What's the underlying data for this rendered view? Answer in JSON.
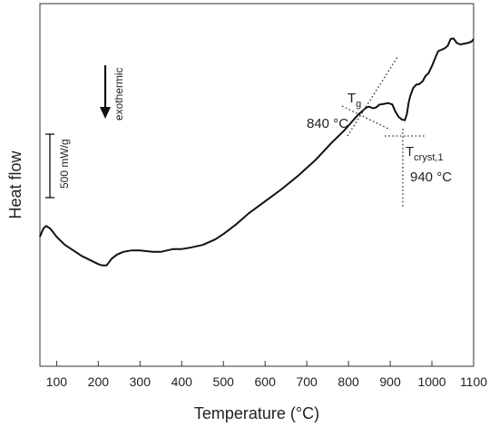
{
  "chart_data": {
    "type": "line",
    "xlabel": "Temperature (°C)",
    "ylabel": "Heat flow",
    "xlim": [
      60,
      1100
    ],
    "ylim": [
      0,
      100
    ],
    "y_ticks_shown": false,
    "grid": false,
    "x_ticks": [
      100,
      200,
      300,
      400,
      500,
      600,
      700,
      800,
      900,
      1000,
      1100
    ],
    "series": [
      {
        "x": [
          60,
          68,
          75,
          85,
          100,
          120,
          140,
          160,
          180,
          200,
          210,
          220,
          232,
          245,
          260,
          280,
          300,
          330,
          350,
          380,
          400,
          420,
          450,
          480,
          500,
          530,
          560,
          600,
          640,
          680,
          720,
          760,
          790,
          810,
          825,
          835,
          842,
          850,
          858,
          865,
          875,
          885,
          895,
          905,
          912,
          920,
          928,
          935,
          940,
          944,
          948,
          955,
          962,
          970,
          978,
          985,
          992,
          1000,
          1008,
          1015,
          1022,
          1030,
          1038,
          1045,
          1052,
          1060,
          1068,
          1075,
          1085,
          1095,
          1100
        ],
        "y": [
          30.5,
          33.5,
          34.5,
          33.5,
          30.5,
          27.5,
          25.5,
          23.5,
          22.0,
          20.5,
          20.0,
          20.0,
          22.5,
          24.0,
          25.0,
          25.5,
          25.5,
          25.0,
          25.0,
          26.0,
          26.0,
          26.5,
          27.5,
          29.5,
          31.5,
          35.0,
          39.0,
          43.5,
          48.0,
          53.0,
          58.5,
          65.0,
          69.5,
          73.0,
          75.5,
          76.8,
          77.8,
          78.2,
          77.6,
          77.8,
          79.0,
          79.2,
          79.5,
          79.0,
          76.5,
          74.5,
          73.5,
          73.2,
          75.5,
          79.5,
          82.0,
          85.0,
          86.2,
          86.5,
          87.5,
          89.5,
          90.5,
          93.0,
          96.0,
          98.5,
          99.0,
          99.5,
          100.5,
          103.0,
          103.2,
          101.5,
          101.0,
          101.2,
          101.5,
          102.0,
          103.0
        ]
      }
    ],
    "annotations": {
      "direction_label": "exothermic",
      "scale_bar_label": "500 mW/g",
      "tg_label_main": "T",
      "tg_label_sub": "g",
      "tg_value": "840 °C",
      "tcryst_label_main": "T",
      "tcryst_label_sub": "cryst,1",
      "tcryst_value": "940 °C"
    }
  }
}
